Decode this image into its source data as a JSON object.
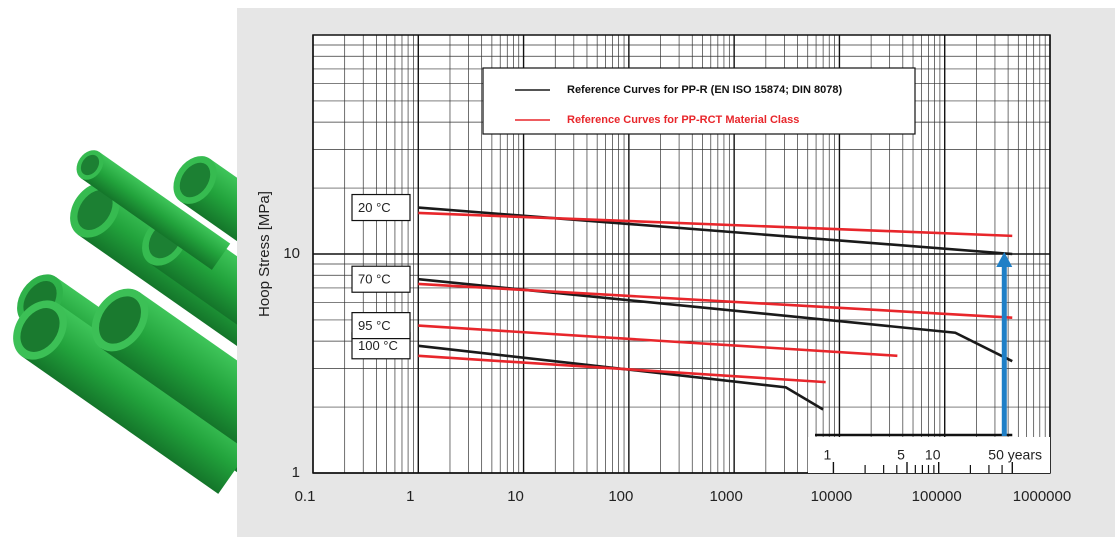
{
  "chart_data": {
    "type": "line",
    "ylabel": "Hoop Stress [MPa]",
    "log_scale": true,
    "grid": true,
    "xlim": [
      0.1,
      1000000
    ],
    "xticks": [
      0.1,
      1,
      10,
      100,
      1000,
      10000,
      100000,
      1000000
    ],
    "xminor": [
      0.2,
      0.3,
      0.4,
      0.5,
      0.6,
      0.7,
      0.8,
      0.9,
      2,
      3,
      4,
      5,
      6,
      7,
      8,
      9,
      20,
      30,
      40,
      50,
      60,
      70,
      80,
      90,
      200,
      300,
      400,
      500,
      600,
      700,
      800,
      900,
      2000,
      3000,
      4000,
      5000,
      6000,
      7000,
      8000,
      9000,
      20000,
      30000,
      40000,
      50000,
      60000,
      70000,
      80000,
      90000,
      200000,
      300000,
      400000,
      500000,
      600000,
      700000,
      800000,
      900000
    ],
    "ylim": [
      1,
      100
    ],
    "yticks": [
      1,
      10
    ],
    "yminor": [
      2,
      3,
      4,
      5,
      6,
      7,
      8,
      9,
      20,
      30,
      40,
      50,
      60,
      70,
      80,
      90
    ],
    "x2lim": [
      1.14e-05,
      114.08
    ],
    "x2ticks": [
      1,
      5,
      10,
      {
        "value": 50,
        "label": "50 years"
      }
    ],
    "x2minor": [
      2,
      3,
      4,
      6,
      7,
      8,
      9,
      20,
      30,
      40
    ],
    "groups": [
      {
        "name": "Reference Curves for PP-R (EN ISO 15874; DIN 8078)",
        "color": "#1a1a1a",
        "curves": [
          {
            "label": "20 °C",
            "x": [
              1,
              438000
            ],
            "values": [
              16.3,
              10
            ]
          },
          {
            "label": "70 °C",
            "x": [
              1,
              126000,
              438000
            ],
            "values": [
              7.67,
              4.37,
              3.24
            ]
          },
          {
            "label": "100 °C",
            "x": [
              1,
              3100,
              7000
            ],
            "values": [
              3.81,
              2.46,
              1.95
            ]
          }
        ]
      },
      {
        "name": "Reference Curves for PP-RCT Material Class",
        "color": "#e8262b",
        "curves": [
          {
            "x": [
              1,
              438000
            ],
            "values": [
              15.4,
              12.1
            ]
          },
          {
            "x": [
              1,
              438000
            ],
            "values": [
              7.3,
              5.12
            ]
          },
          {
            "label": "95 °C",
            "x": [
              1,
              35500
            ],
            "values": [
              4.71,
              3.43
            ]
          },
          {
            "x": [
              1,
              7400
            ],
            "values": [
              3.43,
              2.6
            ]
          }
        ]
      }
    ]
  }
}
